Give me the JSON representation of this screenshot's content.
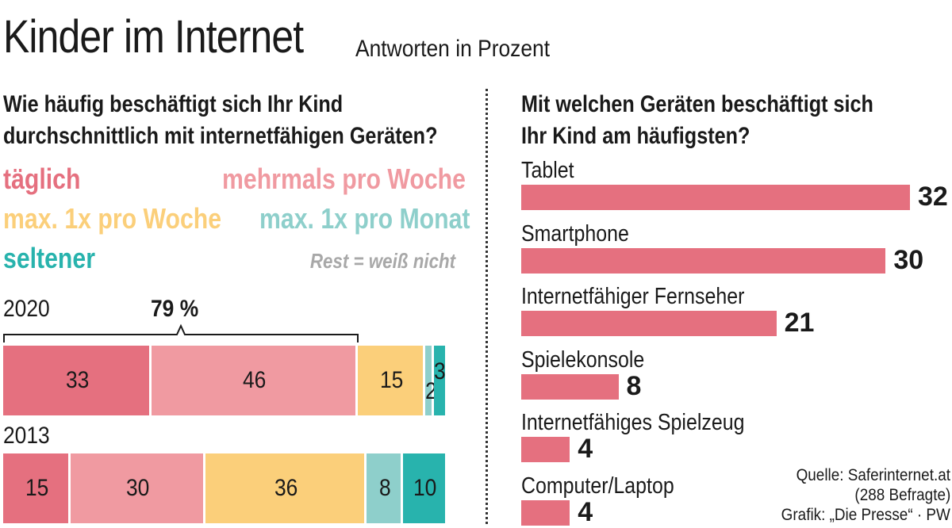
{
  "header": {
    "title": "Kinder im Internet",
    "subtitle": "Antworten in Prozent"
  },
  "left": {
    "question_line1": "Wie häufig beschäftigt sich Ihr Kind",
    "question_line2": "durchschnittlich mit internetfähigen Geräten?",
    "legend": {
      "daily": "täglich",
      "several_weekly": "mehrmals pro Woche",
      "max_weekly": "max. 1x pro Woche",
      "max_monthly": "max. 1x pro Monat",
      "rarely": "seltener",
      "rest": "Rest = weiß nicht"
    },
    "highlight_label": "79 %"
  },
  "right": {
    "question_line1": "Mit welchen Geräten beschäftigt sich",
    "question_line2": "Ihr Kind am häufigsten?"
  },
  "source": {
    "line1": "Quelle: Saferinternet.at",
    "line2": "(288 Befragte)",
    "line3": "Grafik: „Die Presse“ · PW"
  },
  "colors": {
    "daily": "#e5707f",
    "several_weekly": "#f09aa1",
    "max_weekly": "#fbcf7a",
    "max_monthly": "#8ecfcb",
    "rarely": "#28b3ad",
    "rest_text": "#a8a8a8",
    "device_bar": "#e5707f"
  },
  "chart_data": [
    {
      "type": "bar",
      "orientation": "horizontal-stacked",
      "categories": [
        "2020",
        "2013"
      ],
      "series": [
        {
          "name": "täglich",
          "values": [
            33,
            15
          ],
          "color": "#e5707f"
        },
        {
          "name": "mehrmals pro Woche",
          "values": [
            46,
            30
          ],
          "color": "#f09aa1"
        },
        {
          "name": "max. 1x pro Woche",
          "values": [
            15,
            36
          ],
          "color": "#fbcf7a"
        },
        {
          "name": "max. 1x pro Monat",
          "values": [
            2,
            8
          ],
          "color": "#8ecfcb"
        },
        {
          "name": "seltener",
          "values": [
            3,
            10
          ],
          "color": "#28b3ad"
        }
      ],
      "xlim": [
        0,
        100
      ],
      "annotation": "79 %"
    },
    {
      "type": "bar",
      "orientation": "horizontal",
      "categories": [
        "Tablet",
        "Smartphone",
        "Internetfähiger Fernseher",
        "Spielekonsole",
        "Internetfähiges Spielzeug",
        "Computer/Laptop"
      ],
      "values": [
        32,
        30,
        21,
        8,
        4,
        4
      ],
      "xlim": [
        0,
        32
      ]
    }
  ]
}
